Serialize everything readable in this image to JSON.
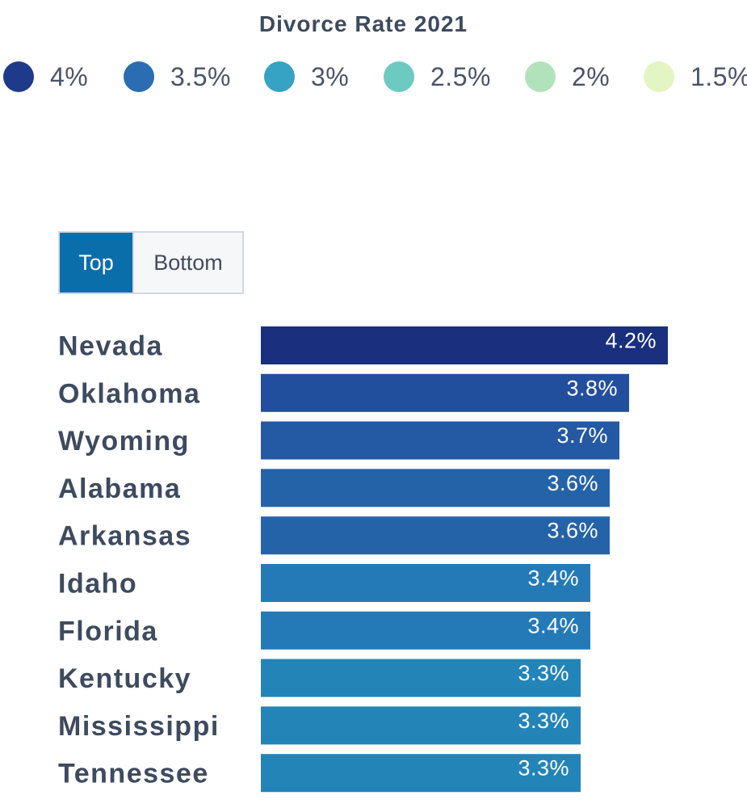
{
  "legend": {
    "title": "Divorce Rate 2021",
    "items": [
      {
        "label": "4%",
        "color": "#1f3a8a"
      },
      {
        "label": "3.5%",
        "color": "#2a6db2"
      },
      {
        "label": "3%",
        "color": "#36a2c4"
      },
      {
        "label": "2.5%",
        "color": "#6ccac0"
      },
      {
        "label": "2%",
        "color": "#b2e2bb"
      },
      {
        "label": "1.5%",
        "color": "#e3f5c3"
      }
    ]
  },
  "toggle": {
    "top_label": "Top",
    "bottom_label": "Bottom",
    "selected": "Top"
  },
  "chart_data": {
    "type": "bar",
    "orientation": "horizontal",
    "title": "Divorce Rate 2021",
    "categories": [
      "Nevada",
      "Oklahoma",
      "Wyoming",
      "Alabama",
      "Arkansas",
      "Idaho",
      "Florida",
      "Kentucky",
      "Mississippi",
      "Tennessee"
    ],
    "values": [
      4.2,
      3.8,
      3.7,
      3.6,
      3.6,
      3.4,
      3.4,
      3.3,
      3.3,
      3.3
    ],
    "value_labels": [
      "4.2%",
      "3.8%",
      "3.7%",
      "3.6%",
      "3.6%",
      "3.4%",
      "3.4%",
      "3.3%",
      "3.3%",
      "3.3%"
    ],
    "colors": [
      "#1a2f7d",
      "#224f9d",
      "#2459a4",
      "#2563a9",
      "#2563a9",
      "#247ab7",
      "#247ab7",
      "#2384b8",
      "#2384b8",
      "#2384b8"
    ],
    "unit": "%",
    "xlim": [
      0,
      4.2
    ],
    "xlabel": "",
    "ylabel": "",
    "grid": false
  }
}
